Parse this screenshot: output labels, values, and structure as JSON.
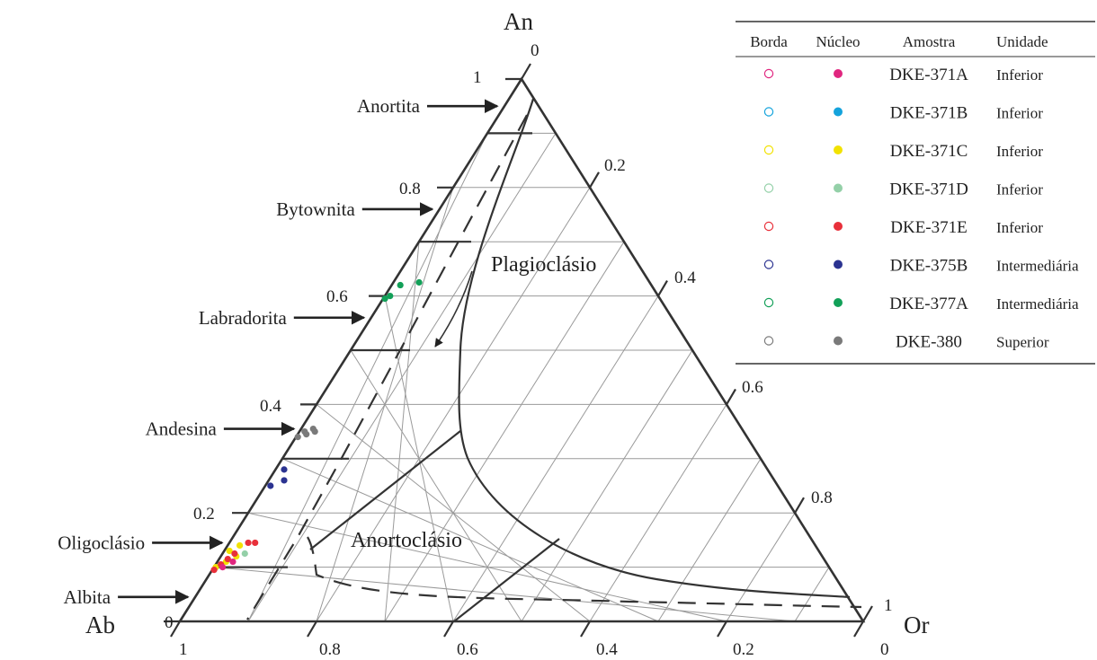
{
  "chart_data": {
    "type": "scatter",
    "subtype": "ternary",
    "vertices": {
      "top": "An",
      "left": "Ab",
      "right": "Or"
    },
    "ticks": {
      "an": [
        "0",
        "0.2",
        "0.4",
        "0.6",
        "0.8",
        "1"
      ],
      "bottom": [
        "1",
        "0.8",
        "0.6",
        "0.4",
        "0.2",
        "0"
      ],
      "right": [
        "0",
        "0.2",
        "0.4",
        "0.6",
        "0.8",
        "1"
      ]
    },
    "grid": true,
    "regions": [
      "Plagioclásio",
      "Anortoclásio"
    ],
    "minerals": [
      {
        "name": "Anortita",
        "an": 0.95
      },
      {
        "name": "Bytownita",
        "an": 0.76
      },
      {
        "name": "Labradorita",
        "an": 0.56
      },
      {
        "name": "Andesina",
        "an": 0.355
      },
      {
        "name": "Oligoclásio",
        "an": 0.145
      },
      {
        "name": "Albita",
        "an": 0.045
      }
    ],
    "plag_boundary_an": [
      0.1,
      0.3,
      0.5,
      0.7,
      0.9
    ],
    "legend": {
      "position": "top-right",
      "headers": [
        "Borda",
        "Núcleo",
        "Amostra",
        "Unidade"
      ],
      "rows": [
        {
          "amostra": "DKE-371A",
          "unidade": "Inferior",
          "color": "#e0267f"
        },
        {
          "amostra": "DKE-371B",
          "unidade": "Inferior",
          "color": "#14a3dc"
        },
        {
          "amostra": "DKE-371C",
          "unidade": "Inferior",
          "color": "#f2e200"
        },
        {
          "amostra": "DKE-371D",
          "unidade": "Inferior",
          "color": "#94d0a8"
        },
        {
          "amostra": "DKE-371E",
          "unidade": "Inferior",
          "color": "#e8303a"
        },
        {
          "amostra": "DKE-375B",
          "unidade": "Intermediária",
          "color": "#2b3391"
        },
        {
          "amostra": "DKE-377A",
          "unidade": "Intermediária",
          "color": "#12a058"
        },
        {
          "amostra": "DKE-380",
          "unidade": "Superior",
          "color": "#7a7a7a"
        }
      ]
    },
    "series": [
      {
        "sample": "DKE-377A",
        "points": [
          {
            "an": 0.62,
            "or": 0.01
          },
          {
            "an": 0.625,
            "or": 0.035
          },
          {
            "an": 0.6,
            "or": 0.005
          },
          {
            "an": 0.595,
            "or": 0.0
          }
        ]
      },
      {
        "sample": "DKE-380",
        "points": [
          {
            "an": 0.35,
            "or": 0.005
          },
          {
            "an": 0.345,
            "or": 0.01
          },
          {
            "an": 0.355,
            "or": 0.015
          },
          {
            "an": 0.34,
            "or": 0.0
          },
          {
            "an": 0.35,
            "or": 0.02
          }
        ]
      },
      {
        "sample": "DKE-375B",
        "points": [
          {
            "an": 0.28,
            "or": 0.01
          },
          {
            "an": 0.26,
            "or": 0.02
          },
          {
            "an": 0.25,
            "or": 0.005
          }
        ]
      },
      {
        "sample": "DKE-371C",
        "points": [
          {
            "an": 0.14,
            "or": 0.015
          },
          {
            "an": 0.13,
            "or": 0.005
          },
          {
            "an": 0.12,
            "or": 0.02
          },
          {
            "an": 0.11,
            "or": 0.01
          },
          {
            "an": 0.1,
            "or": 0.0
          }
        ]
      },
      {
        "sample": "DKE-371D",
        "points": [
          {
            "an": 0.125,
            "or": 0.03
          }
        ]
      },
      {
        "sample": "DKE-371E",
        "points": [
          {
            "an": 0.145,
            "or": 0.025
          },
          {
            "an": 0.145,
            "or": 0.035
          },
          {
            "an": 0.125,
            "or": 0.015
          },
          {
            "an": 0.115,
            "or": 0.01
          },
          {
            "an": 0.105,
            "or": 0.005
          },
          {
            "an": 0.095,
            "or": 0.0
          }
        ]
      },
      {
        "sample": "DKE-371A",
        "points": [
          {
            "an": 0.11,
            "or": 0.02
          },
          {
            "an": 0.1,
            "or": 0.01
          }
        ]
      }
    ]
  }
}
